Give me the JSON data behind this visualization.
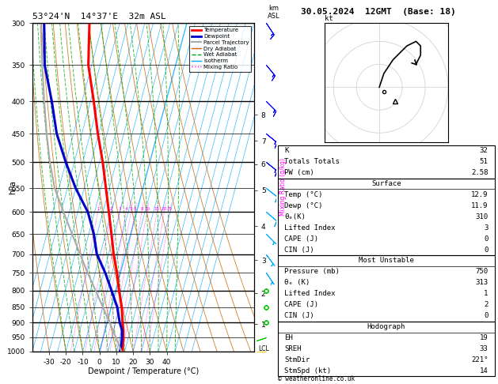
{
  "title_left": "53°24'N  14°37'E  32m ASL",
  "title_right": "30.05.2024  12GMT  (Base: 18)",
  "xlabel": "Dewpoint / Temperature (°C)",
  "ylabel_left": "hPa",
  "pressure_levels": [
    300,
    350,
    400,
    450,
    500,
    550,
    600,
    650,
    700,
    750,
    800,
    850,
    900,
    950,
    1000
  ],
  "temp_ticks": [
    -30,
    -20,
    -10,
    0,
    10,
    20,
    30,
    40
  ],
  "km_ticks": [
    1,
    2,
    3,
    4,
    5,
    6,
    7,
    8
  ],
  "km_pressures": [
    905,
    808,
    716,
    632,
    554,
    503,
    462,
    420
  ],
  "lcl_pressure": 992,
  "temperature_profile": {
    "pressure": [
      1000,
      975,
      950,
      925,
      900,
      850,
      800,
      750,
      700,
      650,
      600,
      550,
      500,
      450,
      400,
      350,
      300
    ],
    "temp": [
      13.8,
      12.8,
      12.0,
      10.8,
      9.2,
      6.2,
      2.0,
      -2.0,
      -7.0,
      -11.5,
      -16.5,
      -22.0,
      -28.0,
      -35.5,
      -43.0,
      -52.0,
      -58.0
    ]
  },
  "dewpoint_profile": {
    "pressure": [
      1000,
      975,
      950,
      925,
      900,
      850,
      800,
      750,
      700,
      650,
      600,
      550,
      500,
      450,
      400,
      350,
      300
    ],
    "temp": [
      12.2,
      11.8,
      11.2,
      10.0,
      7.5,
      3.5,
      -2.5,
      -9.0,
      -17.0,
      -22.0,
      -29.0,
      -40.0,
      -50.0,
      -60.0,
      -68.0,
      -78.0,
      -85.0
    ]
  },
  "parcel_profile": {
    "pressure": [
      1000,
      950,
      900,
      850,
      800,
      750,
      700,
      650,
      600,
      550,
      500,
      450,
      400,
      350,
      300
    ],
    "temp": [
      13.0,
      7.5,
      1.5,
      -5.0,
      -12.0,
      -19.5,
      -27.0,
      -35.0,
      -43.5,
      -52.5,
      -59.5,
      -66.0,
      -72.5,
      -79.5,
      -87.0
    ]
  },
  "surface_stats": {
    "K": 32,
    "Totals_Totals": 51,
    "PW_cm": 2.58,
    "Temp_C": 12.9,
    "Dewp_C": 11.9,
    "theta_e_K": 310,
    "Lifted_Index": 3,
    "CAPE_J": 0,
    "CIN_J": 0
  },
  "most_unstable": {
    "Pressure_mb": 750,
    "theta_e_K": 313,
    "Lifted_Index": 1,
    "CAPE_J": 2,
    "CIN_J": 0
  },
  "hodograph_stats": {
    "EH": 19,
    "SREH": 33,
    "StmDir": 221,
    "StmSpd_kt": 14
  },
  "colors": {
    "temperature": "#ff0000",
    "dewpoint": "#0000cc",
    "parcel": "#aaaaaa",
    "dry_adiabat": "#cc6600",
    "wet_adiabat": "#00aa00",
    "isotherm": "#00aaff",
    "mixing_ratio": "#ff00ff",
    "background": "#ffffff",
    "grid_line": "#000000"
  },
  "wind_barb_pressures": [
    300,
    350,
    400,
    450,
    500,
    550,
    600,
    650,
    700,
    750,
    800,
    850,
    900,
    950,
    1000
  ],
  "wind_barb_u": [
    -8,
    -9,
    -10,
    -11,
    -10,
    -9,
    -7,
    -5,
    -3,
    -2,
    -1,
    1,
    2,
    3,
    4
  ],
  "wind_barb_v": [
    12,
    11,
    10,
    9,
    8,
    7,
    6,
    5,
    4,
    3,
    2,
    2,
    1,
    1,
    0
  ],
  "wind_barb_colors": [
    "#0000ff",
    "#0000ff",
    "#0000ff",
    "#0000ff",
    "#0000ff",
    "#00aaff",
    "#00aaff",
    "#00aaff",
    "#00aaff",
    "#00aaff",
    "#00cc00",
    "#00cc00",
    "#00cc00",
    "#00cc00",
    "#ffcc00"
  ]
}
